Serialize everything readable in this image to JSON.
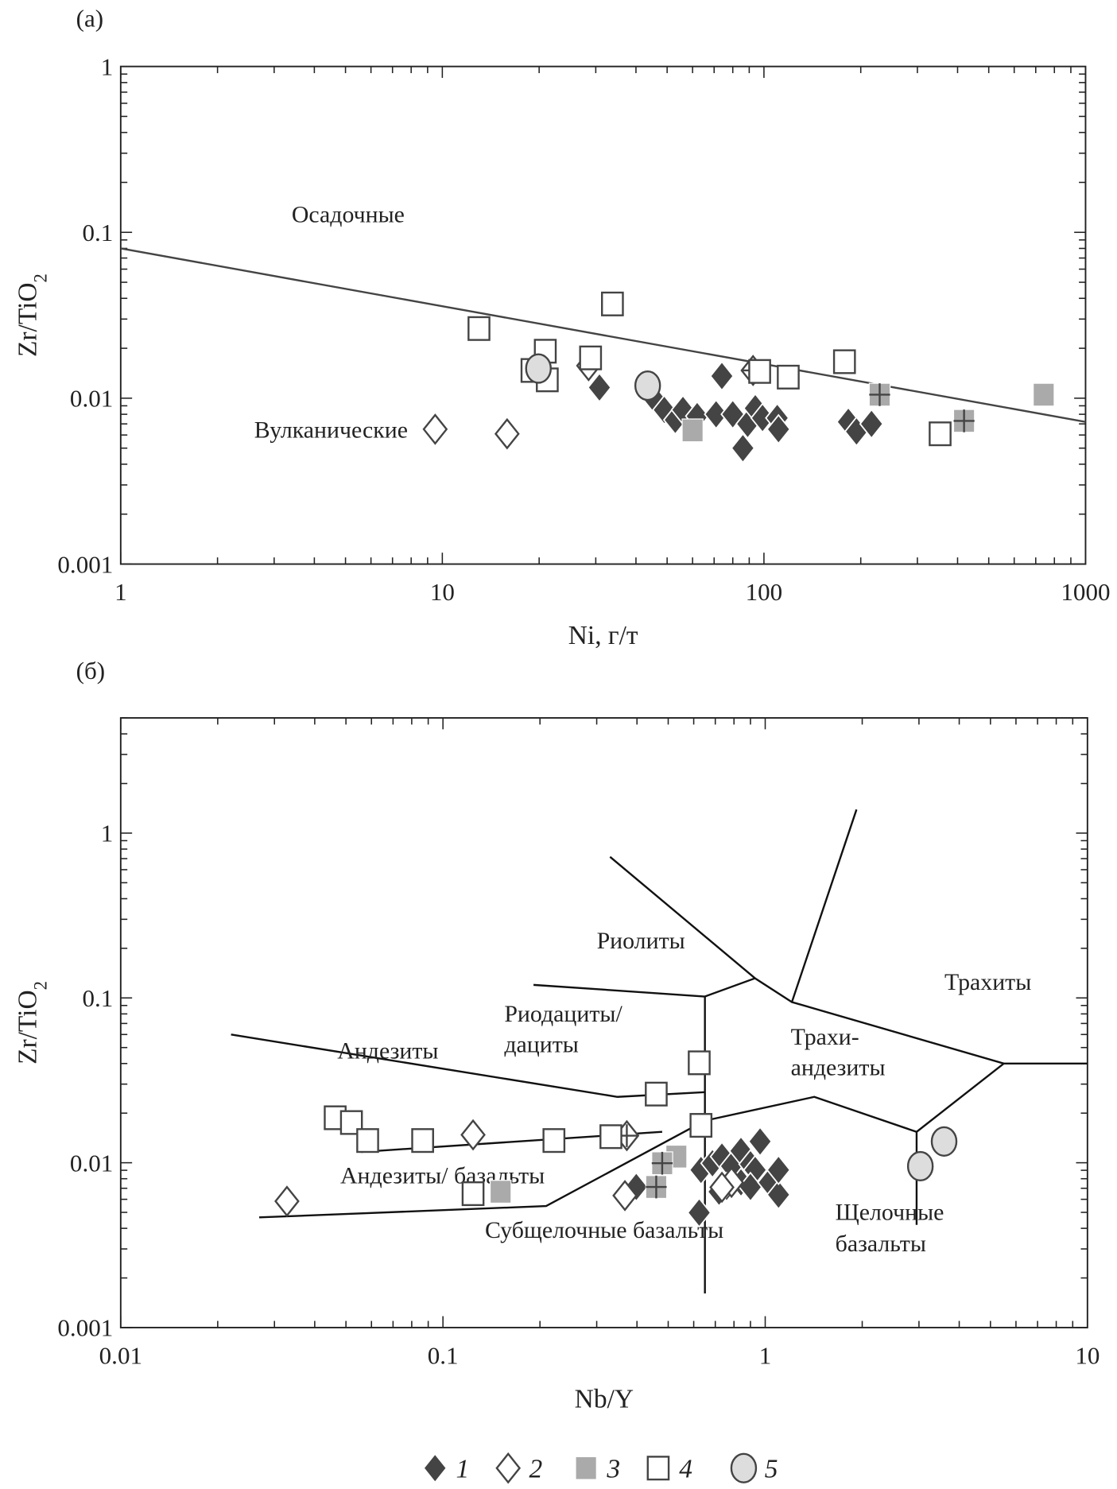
{
  "legend": {
    "items": [
      {
        "label": "1",
        "marker": "diamond-filled"
      },
      {
        "label": "2",
        "marker": "diamond-open"
      },
      {
        "label": "3",
        "marker": "square-gray"
      },
      {
        "label": "4",
        "marker": "square-open"
      },
      {
        "label": "5",
        "marker": "circle-light"
      }
    ]
  },
  "colors": {
    "dark": "#444444",
    "gray": "#aaaaaa",
    "light": "#dddddd",
    "line": "#111111"
  },
  "chart_data": [
    {
      "panel_label": "(а)",
      "type": "scatter",
      "xscale": "log",
      "yscale": "log",
      "xlim": [
        1,
        1000
      ],
      "ylim": [
        0.001,
        1
      ],
      "xlabel": "Ni, г/т",
      "ylabel_main": "Zr/TiO",
      "ylabel_sub": "2",
      "xticks": [
        "1",
        "10",
        "100",
        "1000"
      ],
      "xtick_values": [
        1,
        10,
        100,
        1000
      ],
      "yticks": [
        "0.001",
        "0.01",
        "0.1",
        "1"
      ],
      "ytick_values": [
        0.001,
        0.01,
        0.1,
        1
      ],
      "annotations": [
        {
          "text": "Осадочные",
          "x": 3.4,
          "y": 0.115
        },
        {
          "text": "Вулканические",
          "x": 2.6,
          "y": 0.0058
        }
      ],
      "lines": [
        {
          "points": [
            [
              1,
              0.08
            ],
            [
              1000,
              0.0072
            ]
          ],
          "color": "#444444"
        }
      ],
      "series": [
        {
          "legend": "1",
          "marker": "diamond-filled",
          "points": [
            [
              30.8,
              0.0116
            ],
            [
              74,
              0.0136
            ],
            [
              45,
              0.0102
            ],
            [
              49,
              0.0085
            ],
            [
              53,
              0.0074
            ],
            [
              56,
              0.0085
            ],
            [
              62,
              0.0078
            ],
            [
              71,
              0.008
            ],
            [
              80,
              0.008
            ],
            [
              89,
              0.007
            ],
            [
              94,
              0.0087
            ],
            [
              99,
              0.0076
            ],
            [
              110,
              0.0076
            ],
            [
              111,
              0.0065
            ],
            [
              86,
              0.005
            ],
            [
              183,
              0.0072
            ],
            [
              194,
              0.0063
            ],
            [
              216,
              0.007
            ]
          ]
        },
        {
          "legend": "2",
          "marker": "diamond-open",
          "points": [
            [
              9.5,
              0.0065
            ],
            [
              15.9,
              0.0061
            ],
            [
              28.5,
              0.0157
            ]
          ],
          "cross_points": [
            [
              92.5,
              0.0147
            ]
          ]
        },
        {
          "legend": "3",
          "marker": "square-gray",
          "points": [
            [
              60,
              0.0064
            ],
            [
              741,
              0.0105
            ]
          ],
          "cross_points": [
            [
              229,
              0.0105
            ],
            [
              419,
              0.0073
            ]
          ]
        },
        {
          "legend": "4",
          "marker": "square-open",
          "points": [
            [
              13,
              0.0263
            ],
            [
              33.8,
              0.037
            ],
            [
              20.9,
              0.0192
            ],
            [
              19,
              0.0147
            ],
            [
              21.2,
              0.0129
            ],
            [
              28.9,
              0.0175
            ],
            [
              97,
              0.0145
            ],
            [
              119,
              0.0134
            ],
            [
              178,
              0.0166
            ],
            [
              353,
              0.0061
            ]
          ]
        },
        {
          "legend": "5",
          "marker": "circle-light",
          "points": [
            [
              19.9,
              0.0151
            ],
            [
              43.5,
              0.0119
            ]
          ]
        }
      ]
    },
    {
      "panel_label": "(б)",
      "type": "scatter",
      "xscale": "log",
      "yscale": "log",
      "xlim": [
        0.01,
        10
      ],
      "ylim": [
        0.001,
        5
      ],
      "xlabel": "Nb/Y",
      "ylabel_main": "Zr/TiO",
      "ylabel_sub": "2",
      "xticks": [
        "0.01",
        "0.1",
        "1",
        "10"
      ],
      "xtick_values": [
        0.01,
        0.1,
        1,
        10
      ],
      "yticks": [
        "0.001",
        "0.01",
        "0.1",
        "1"
      ],
      "ytick_values": [
        0.001,
        0.01,
        0.1,
        1
      ],
      "annotations": [
        {
          "text": "Риолиты",
          "x": 0.3,
          "y": 0.2
        },
        {
          "text": "Трахиты",
          "x": 3.6,
          "y": 0.112
        },
        {
          "text": "Риодациты/",
          "x": 0.155,
          "y": 0.072
        },
        {
          "text": "дациты",
          "x": 0.155,
          "y": 0.047
        },
        {
          "text": "Трахи-",
          "x": 1.2,
          "y": 0.052
        },
        {
          "text": "андезиты",
          "x": 1.2,
          "y": 0.034
        },
        {
          "text": "Андезиты",
          "x": 0.047,
          "y": 0.043
        },
        {
          "text": "Андезиты/ базальты",
          "x": 0.048,
          "y": 0.0075
        },
        {
          "text": "Субщелочные базальты",
          "x": 0.135,
          "y": 0.0035
        },
        {
          "text": "Щелочные",
          "x": 1.65,
          "y": 0.0045
        },
        {
          "text": "базальты",
          "x": 1.65,
          "y": 0.0029
        }
      ],
      "lines": [
        {
          "points": [
            [
              0.191,
              0.12
            ],
            [
              0.65,
              0.102
            ]
          ],
          "color": "#111111"
        },
        {
          "points": [
            [
              0.65,
              0.102
            ],
            [
              0.65,
              0.00161
            ]
          ],
          "color": "#111111"
        },
        {
          "points": [
            [
              0.65,
              0.102
            ],
            [
              0.93,
              0.1316
            ],
            [
              1.21,
              0.0944
            ],
            [
              5.5,
              0.04
            ],
            [
              10,
              0.04
            ]
          ],
          "color": "#111111"
        },
        {
          "points": [
            [
              0.33,
              0.718
            ],
            [
              0.93,
              0.1316
            ]
          ],
          "color": "#111111"
        },
        {
          "points": [
            [
              1.21,
              0.0944
            ],
            [
              1.92,
              1.39
            ]
          ],
          "color": "#111111"
        },
        {
          "points": [
            [
              0.022,
              0.06
            ],
            [
              0.348,
              0.0251
            ],
            [
              0.65,
              0.0268
            ]
          ],
          "color": "#111111"
        },
        {
          "points": [
            [
              0.0557,
              0.01163
            ],
            [
              0.479,
              0.0154
            ]
          ],
          "color": "#111111"
        },
        {
          "points": [
            [
              0.0269,
              0.00466
            ],
            [
              0.209,
              0.00546
            ],
            [
              0.65,
              0.018
            ],
            [
              1.42,
              0.0251
            ],
            [
              2.95,
              0.0154
            ],
            [
              5.5,
              0.04
            ]
          ],
          "color": "#111111"
        },
        {
          "points": [
            [
              2.95,
              0.0154
            ],
            [
              2.95,
              0.0042
            ]
          ],
          "color": "#111111"
        }
      ],
      "series": [
        {
          "legend": "1",
          "marker": "diamond-filled",
          "points": [
            [
              0.398,
              0.00713
            ],
            [
              0.624,
              0.00498
            ],
            [
              0.632,
              0.00904
            ],
            [
              0.686,
              0.00993
            ],
            [
              0.734,
              0.0109
            ],
            [
              0.786,
              0.00953
            ],
            [
              0.841,
              0.0118
            ],
            [
              0.9,
              0.0098
            ],
            [
              0.964,
              0.01346
            ],
            [
              0.931,
              0.00904
            ],
            [
              0.759,
              0.00713
            ],
            [
              0.841,
              0.0076
            ],
            [
              0.9,
              0.00713
            ],
            [
              1.03,
              0.0076
            ],
            [
              1.1,
              0.0064
            ],
            [
              1.1,
              0.00904
            ],
            [
              0.719,
              0.00667
            ]
          ]
        },
        {
          "legend": "2",
          "marker": "diamond-open",
          "points": [
            [
              0.0328,
              0.00584
            ],
            [
              0.124,
              0.01476
            ],
            [
              0.367,
              0.00632
            ],
            [
              0.786,
              0.0076
            ],
            [
              0.734,
              0.0071
            ]
          ],
          "cross_points": [
            [
              0.372,
              0.0146
            ]
          ]
        },
        {
          "legend": "3",
          "marker": "square-gray",
          "points": [
            [
              0.151,
              0.00667
            ],
            [
              0.53,
              0.0109
            ]
          ],
          "cross_points": [
            [
              0.479,
              0.00993
            ],
            [
              0.459,
              0.00713
            ]
          ]
        },
        {
          "legend": "4",
          "marker": "square-open",
          "points": [
            [
              0.0463,
              0.01875
            ],
            [
              0.052,
              0.01754
            ],
            [
              0.0584,
              0.01364
            ],
            [
              0.0865,
              0.01364
            ],
            [
              0.221,
              0.01364
            ],
            [
              0.332,
              0.0144
            ],
            [
              0.124,
              0.00649
            ],
            [
              0.459,
              0.0261
            ],
            [
              0.624,
              0.0404
            ],
            [
              0.632,
              0.01686
            ]
          ]
        },
        {
          "legend": "5",
          "marker": "circle-light",
          "points": [
            [
              3.03,
              0.00953
            ],
            [
              3.59,
              0.01346
            ]
          ]
        }
      ]
    }
  ]
}
